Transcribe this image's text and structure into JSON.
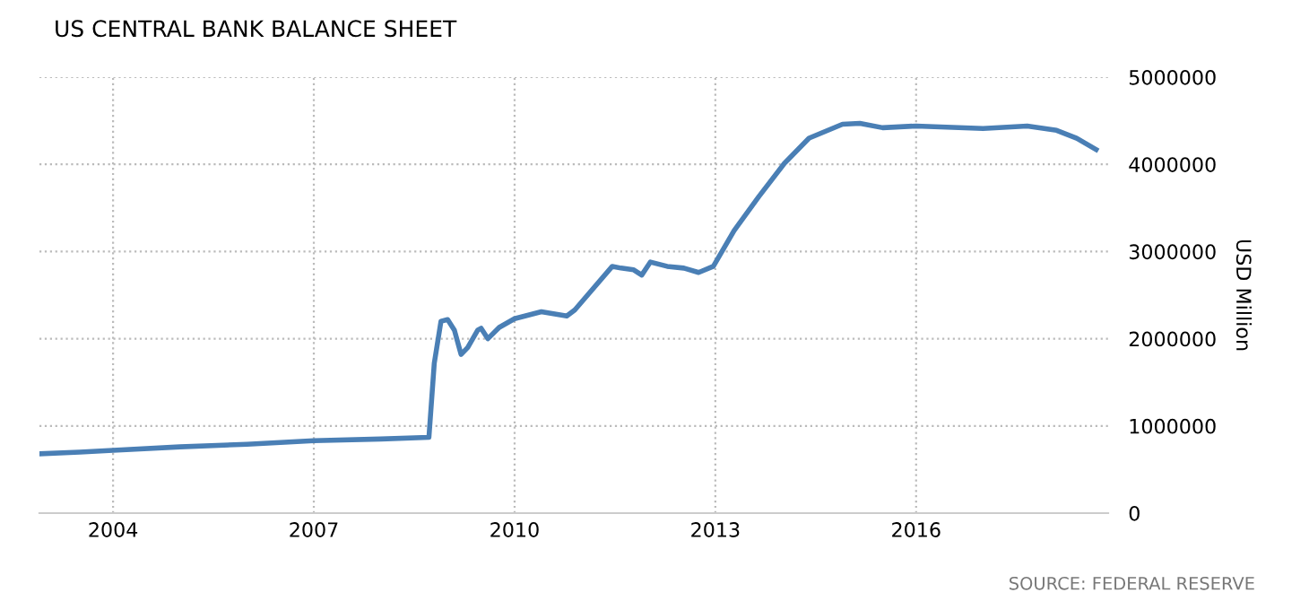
{
  "chart_data": {
    "type": "line",
    "title": "US CENTRAL BANK BALANCE SHEET",
    "ylabel": "USD Million",
    "annotations": [
      "SOURCE: FEDERAL RESERVE"
    ],
    "x": [
      2002.9,
      2003.5,
      2004,
      2005,
      2006,
      2007,
      2008,
      2008.72,
      2008.8,
      2008.9,
      2009.0,
      2009.1,
      2009.2,
      2009.3,
      2009.45,
      2009.5,
      2009.6,
      2009.77,
      2010.0,
      2010.4,
      2010.78,
      2010.9,
      2011.46,
      2011.59,
      2011.78,
      2011.9,
      2012.03,
      2012.28,
      2012.53,
      2012.75,
      2012.97,
      2013.28,
      2013.65,
      2014.03,
      2014.4,
      2014.9,
      2015.16,
      2015.5,
      2016.0,
      2017.0,
      2017.66,
      2018.1,
      2018.4,
      2018.69
    ],
    "series": [
      {
        "color": "#4a7fb5",
        "values": [
          680000,
          700000,
          720000,
          760000,
          790000,
          830000,
          850000,
          870000,
          1720000,
          2200000,
          2220000,
          2100000,
          1820000,
          1900000,
          2100000,
          2120000,
          2000000,
          2130000,
          2230000,
          2310000,
          2260000,
          2330000,
          2830000,
          2810000,
          2790000,
          2730000,
          2880000,
          2830000,
          2810000,
          2760000,
          2830000,
          3240000,
          3630000,
          4010000,
          4300000,
          4460000,
          4470000,
          4420000,
          4440000,
          4410000,
          4440000,
          4390000,
          4300000,
          4170000
        ]
      }
    ],
    "xlim": [
      2002.9,
      2018.87
    ],
    "ylim": [
      0,
      5000000
    ],
    "xticks": [
      2004,
      2007,
      2010,
      2013,
      2016
    ],
    "yticks": [
      0,
      1000000,
      2000000,
      3000000,
      4000000,
      5000000
    ],
    "grid": true,
    "line_style": "solid",
    "marker": "none"
  }
}
